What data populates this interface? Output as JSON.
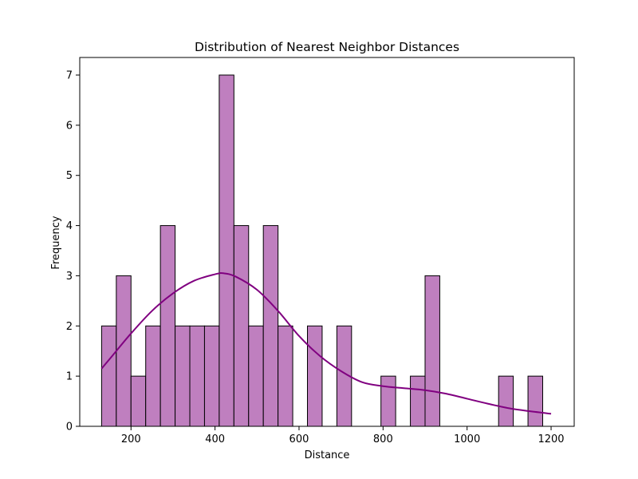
{
  "chart_data": {
    "type": "bar",
    "subtype": "histogram-with-kde",
    "title": "Distribution of Nearest Neighbor Distances",
    "xlabel": "Distance",
    "ylabel": "Frequency",
    "xlim": [
      78,
      1255
    ],
    "ylim": [
      0,
      7.35
    ],
    "xticks": [
      200,
      400,
      600,
      800,
      1000,
      1200
    ],
    "yticks": [
      0,
      1,
      2,
      3,
      4,
      5,
      6,
      7
    ],
    "grid": false,
    "legend": "none",
    "bar_color": "#bf7fbf",
    "bar_edge_color": "#000000",
    "kde_color": "#800080",
    "bins": [
      {
        "x0": 130,
        "x1": 165,
        "count": 2
      },
      {
        "x0": 165,
        "x1": 200,
        "count": 3
      },
      {
        "x0": 200,
        "x1": 235,
        "count": 1
      },
      {
        "x0": 235,
        "x1": 270,
        "count": 2
      },
      {
        "x0": 270,
        "x1": 305,
        "count": 4
      },
      {
        "x0": 305,
        "x1": 340,
        "count": 2
      },
      {
        "x0": 340,
        "x1": 375,
        "count": 2
      },
      {
        "x0": 375,
        "x1": 410,
        "count": 2
      },
      {
        "x0": 410,
        "x1": 445,
        "count": 7
      },
      {
        "x0": 445,
        "x1": 480,
        "count": 4
      },
      {
        "x0": 480,
        "x1": 515,
        "count": 2
      },
      {
        "x0": 515,
        "x1": 550,
        "count": 4
      },
      {
        "x0": 550,
        "x1": 585,
        "count": 2
      },
      {
        "x0": 620,
        "x1": 655,
        "count": 2
      },
      {
        "x0": 690,
        "x1": 725,
        "count": 2
      },
      {
        "x0": 795,
        "x1": 830,
        "count": 1
      },
      {
        "x0": 865,
        "x1": 900,
        "count": 1
      },
      {
        "x0": 900,
        "x1": 935,
        "count": 3
      },
      {
        "x0": 1075,
        "x1": 1110,
        "count": 1
      },
      {
        "x0": 1145,
        "x1": 1180,
        "count": 1
      }
    ],
    "kde": {
      "x": [
        130,
        160,
        200,
        250,
        300,
        350,
        400,
        420,
        450,
        500,
        550,
        600,
        650,
        700,
        750,
        800,
        850,
        900,
        950,
        1000,
        1050,
        1100,
        1150,
        1200
      ],
      "y": [
        1.15,
        1.45,
        1.85,
        2.3,
        2.65,
        2.9,
        3.03,
        3.05,
        2.98,
        2.72,
        2.3,
        1.8,
        1.4,
        1.1,
        0.88,
        0.8,
        0.76,
        0.72,
        0.65,
        0.55,
        0.45,
        0.36,
        0.3,
        0.25
      ]
    }
  }
}
